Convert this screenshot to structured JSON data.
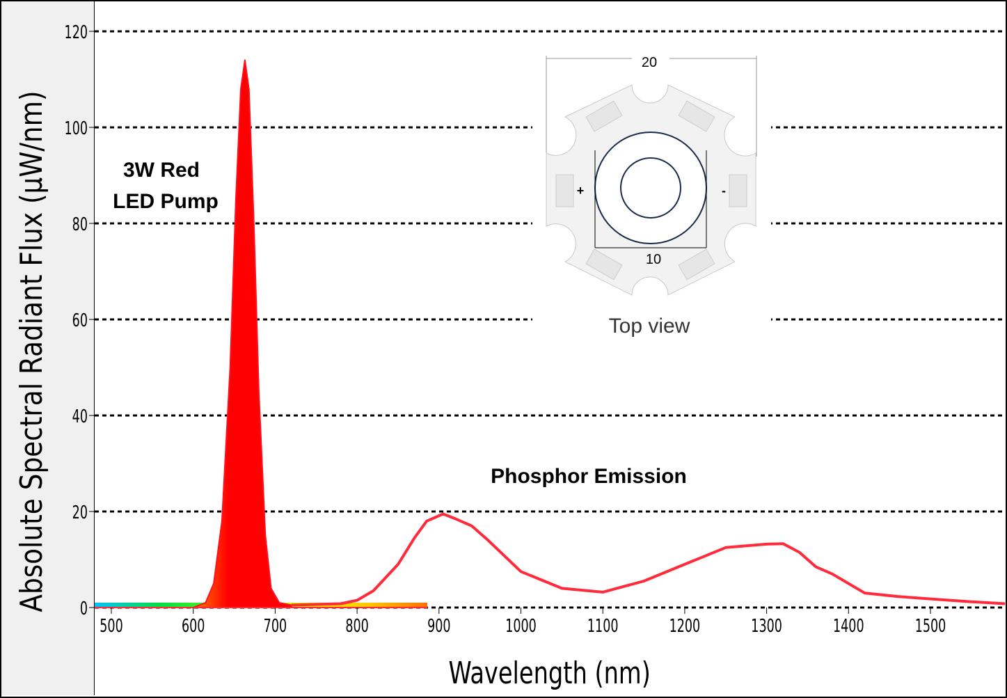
{
  "chart_data": {
    "type": "area",
    "xlabel": "Wavelength (nm)",
    "ylabel": "Absolute Spectral Radiant Flux (μW/nm)",
    "xlim": [
      479,
      1591
    ],
    "ylim": [
      0,
      120
    ],
    "xticks": [
      500,
      600,
      700,
      800,
      900,
      1000,
      1100,
      1200,
      1300,
      1400,
      1500
    ],
    "yticks": [
      0,
      20,
      40,
      60,
      80,
      100,
      120
    ],
    "grid": "horizontal dashed",
    "series": [
      {
        "color": "#ff0000",
        "fill": true,
        "x": [
          600,
          615,
          625,
          635,
          645,
          652,
          658,
          663,
          668,
          674,
          680,
          688,
          695,
          705,
          720
        ],
        "y": [
          0,
          1,
          5,
          18,
          50,
          85,
          108,
          114,
          108,
          80,
          45,
          15,
          4,
          1,
          0.5
        ]
      },
      {
        "color": "#ff2a3a",
        "fill": false,
        "x": [
          720,
          780,
          800,
          820,
          850,
          870,
          885,
          905,
          920,
          940,
          960,
          1000,
          1050,
          1100,
          1150,
          1200,
          1250,
          1300,
          1320,
          1340,
          1360,
          1380,
          1400,
          1420,
          1460,
          1500,
          1550,
          1591
        ],
        "y": [
          0.5,
          0.8,
          1.5,
          3.5,
          9,
          14.5,
          18,
          19.5,
          18.5,
          17,
          14,
          7.5,
          4,
          3.2,
          5.5,
          9,
          12.5,
          13.2,
          13.3,
          11.5,
          8.5,
          7,
          5,
          3,
          2.3,
          1.8,
          1.2,
          0.8
        ]
      }
    ],
    "annotations": [
      "3W Red",
      "LED Pump",
      "Phosphor Emission"
    ],
    "inset": {
      "caption": "Top view",
      "dim_outer": "20",
      "dim_inner": "10",
      "plus": "+",
      "minus": "-"
    }
  }
}
